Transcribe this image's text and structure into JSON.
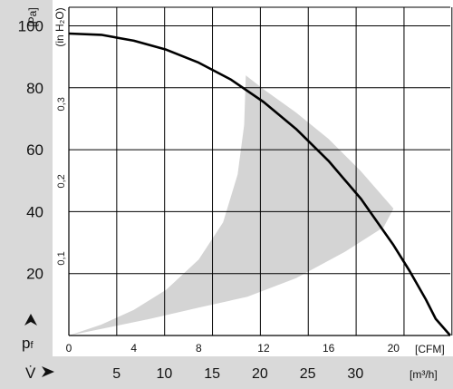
{
  "chart_data": {
    "type": "line",
    "title": "",
    "y_axis_left": {
      "unit_label": "[Pa]",
      "symbol": "pf",
      "range": [
        0,
        106
      ],
      "ticks": [
        20,
        40,
        60,
        80,
        100
      ],
      "tick_labels": [
        "20",
        "40",
        "60",
        "80",
        "100"
      ]
    },
    "y_axis_secondary": {
      "unit_label": "(in H₂O)",
      "ticks": [
        0.1,
        0.2,
        0.3
      ],
      "tick_labels": [
        "0,1",
        "0,2",
        "0,3"
      ]
    },
    "x_axis_primary": {
      "unit_label": "[CFM]",
      "range": [
        0,
        23.5
      ],
      "ticks": [
        0,
        4,
        8,
        12,
        16,
        20
      ],
      "tick_labels": [
        "0",
        "4",
        "8",
        "12",
        "16",
        "20"
      ]
    },
    "x_axis_secondary": {
      "unit_label": "[m³/h]",
      "symbol": "V̇",
      "ticks": [
        5,
        10,
        15,
        20,
        25,
        30
      ],
      "tick_labels": [
        "5",
        "10",
        "15",
        "20",
        "25",
        "30"
      ]
    },
    "vertical_gridlines_cfm": [
      2.95,
      5.9,
      8.85,
      11.8,
      14.75,
      17.7,
      20.65,
      23.6
    ],
    "horizontal_gridlines_pa": [
      20,
      40,
      60,
      80,
      100
    ],
    "grid": true,
    "series": [
      {
        "x": [
          0,
          2,
          4,
          6,
          8,
          10,
          12,
          14,
          16,
          18,
          20,
          21,
          22,
          22.6,
          23.5
        ],
        "y": [
          97.5,
          97.1,
          95.2,
          92.3,
          88.1,
          82.6,
          75.4,
          66.7,
          56.4,
          44.1,
          29.2,
          20.8,
          11.6,
          5.4,
          0
        ],
        "color": "#000000"
      }
    ],
    "shaded_regions": [
      {
        "color": "#d4d4d4",
        "boundary": [
          [
            0,
            0
          ],
          [
            2,
            3.5
          ],
          [
            4,
            8.3
          ],
          [
            6,
            14.8
          ],
          [
            8,
            24.5
          ],
          [
            9.5,
            36.5
          ],
          [
            10.4,
            52
          ],
          [
            10.8,
            68
          ],
          [
            10.9,
            84
          ],
          [
            12,
            79.5
          ],
          [
            14,
            72
          ],
          [
            16,
            63.5
          ],
          [
            18,
            53
          ],
          [
            20,
            41
          ],
          [
            19.4,
            35
          ],
          [
            17,
            27
          ],
          [
            14,
            18.5
          ],
          [
            11,
            12.5
          ],
          [
            8,
            9
          ],
          [
            5,
            5.4
          ],
          [
            2,
            2.1
          ],
          [
            0,
            0
          ]
        ]
      }
    ]
  }
}
